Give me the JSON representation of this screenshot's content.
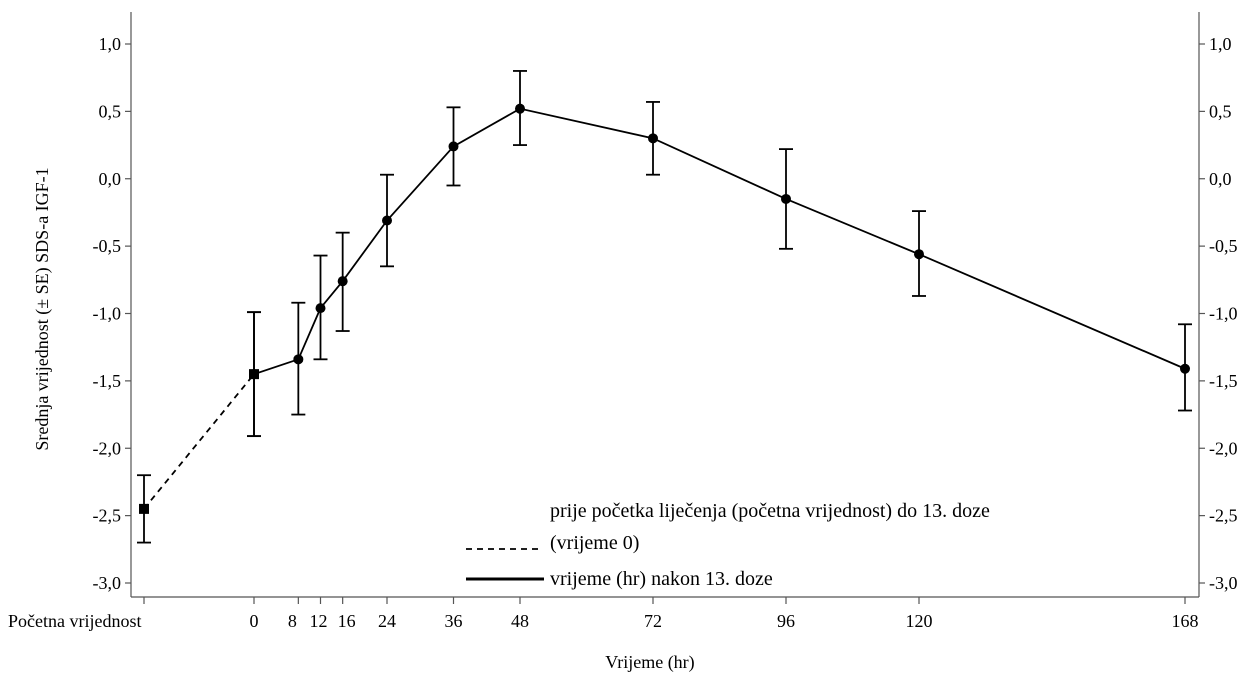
{
  "chart_data": {
    "type": "line",
    "ylabel": "Srednja vrijednost (± SE) SDS-a IGF-1",
    "xlabel": "Vrijeme (hr)",
    "ylim": [
      -3.0,
      1.0
    ],
    "yticks": [
      "1,0",
      "0,5",
      "0,0",
      "-0,5",
      "-1,0",
      "-1,5",
      "-2,0",
      "-2,5",
      "-3,0"
    ],
    "ytick_values": [
      1.0,
      0.5,
      0.0,
      -0.5,
      -1.0,
      -1.5,
      -2.0,
      -2.5,
      -3.0
    ],
    "xticks": [
      {
        "label": "Početna vrijednost",
        "x": "baseline"
      },
      {
        "label": "0",
        "x": 0
      },
      {
        "label": "8",
        "x": 8
      },
      {
        "label": "12",
        "x": 12
      },
      {
        "label": "16",
        "x": 16
      },
      {
        "label": "24",
        "x": 24
      },
      {
        "label": "36",
        "x": 36
      },
      {
        "label": "48",
        "x": 48
      },
      {
        "label": "72",
        "x": 72
      },
      {
        "label": "96",
        "x": 96
      },
      {
        "label": "120",
        "x": 120
      },
      {
        "label": "168",
        "x": 168
      }
    ],
    "grid": false,
    "series": [
      {
        "name": "prije početka liječenja (početna vrijednost) do 13. doze (vrijeme 0)",
        "style": "dashed",
        "marker": "square",
        "points": [
          {
            "x": "baseline",
            "y": -2.45,
            "lo": -2.7,
            "hi": -2.2
          },
          {
            "x": 0,
            "y": -1.45,
            "lo": -1.91,
            "hi": -0.99
          }
        ]
      },
      {
        "name": "vrijeme (hr) nakon 13. doze",
        "style": "solid",
        "marker": "circle",
        "points": [
          {
            "x": 0,
            "y": -1.45,
            "lo": -1.91,
            "hi": -0.99
          },
          {
            "x": 8,
            "y": -1.34,
            "lo": -1.75,
            "hi": -0.92
          },
          {
            "x": 12,
            "y": -0.96,
            "lo": -1.34,
            "hi": -0.57
          },
          {
            "x": 16,
            "y": -0.76,
            "lo": -1.13,
            "hi": -0.4
          },
          {
            "x": 24,
            "y": -0.31,
            "lo": -0.65,
            "hi": 0.03
          },
          {
            "x": 36,
            "y": 0.24,
            "lo": -0.05,
            "hi": 0.53
          },
          {
            "x": 48,
            "y": 0.52,
            "lo": 0.25,
            "hi": 0.8
          },
          {
            "x": 72,
            "y": 0.3,
            "lo": 0.03,
            "hi": 0.57
          },
          {
            "x": 96,
            "y": -0.15,
            "lo": -0.52,
            "hi": 0.22
          },
          {
            "x": 120,
            "y": -0.56,
            "lo": -0.87,
            "hi": -0.24
          },
          {
            "x": 168,
            "y": -1.41,
            "lo": -1.72,
            "hi": -1.08
          }
        ]
      }
    ],
    "legend": {
      "placement": "bottom-right inside plot",
      "items": [
        {
          "line1": "prije početka liječenja (početna vrijednost) do 13. doze",
          "line2": "(vrijeme 0)",
          "style": "dashed"
        },
        {
          "line1": "vrijeme (hr) nakon 13. doze",
          "line2": "",
          "style": "solid"
        }
      ]
    },
    "colors": {
      "line": "#000000",
      "axis": "#555555",
      "background": "#ffffff"
    }
  }
}
